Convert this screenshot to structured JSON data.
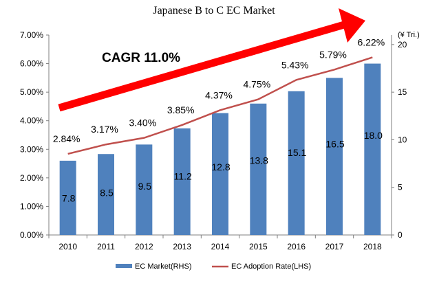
{
  "chart_data": {
    "type": "bar",
    "title": "Japanese B to C EC Market",
    "categories": [
      "2010",
      "2011",
      "2012",
      "2013",
      "2014",
      "2015",
      "2016",
      "2017",
      "2018"
    ],
    "series": [
      {
        "name": "EC Market(RHS)",
        "kind": "bar",
        "axis": "right",
        "color": "#4f81bd",
        "values": [
          7.8,
          8.5,
          9.5,
          11.2,
          12.8,
          13.8,
          15.1,
          16.5,
          18.0
        ],
        "labels": [
          "7.8",
          "8.5",
          "9.5",
          "11.2",
          "12.8",
          "13.8",
          "15.1",
          "16.5",
          "18.0"
        ]
      },
      {
        "name": "EC Adoption Rate(LHS)",
        "kind": "line",
        "axis": "left",
        "color": "#c0504d",
        "values": [
          2.84,
          3.17,
          3.4,
          3.85,
          4.37,
          4.75,
          5.43,
          5.79,
          6.22
        ],
        "labels": [
          "2.84%",
          "3.17%",
          "3.40%",
          "3.85%",
          "4.37%",
          "4.75%",
          "5.43%",
          "5.79%",
          "6.22%"
        ]
      }
    ],
    "left_axis": {
      "ylim": [
        0,
        7
      ],
      "ticks": [
        "0.00%",
        "1.00%",
        "2.00%",
        "3.00%",
        "4.00%",
        "5.00%",
        "6.00%",
        "7.00%"
      ]
    },
    "right_axis": {
      "ylim": [
        0,
        21
      ],
      "unit": "(¥ Tri.)",
      "ticks": [
        "0",
        "5",
        "10",
        "15",
        "20"
      ]
    },
    "annotation": {
      "text": "CAGR 11.0%",
      "arrow_color": "#ff0000"
    },
    "grid": false,
    "legend": "bottom"
  }
}
